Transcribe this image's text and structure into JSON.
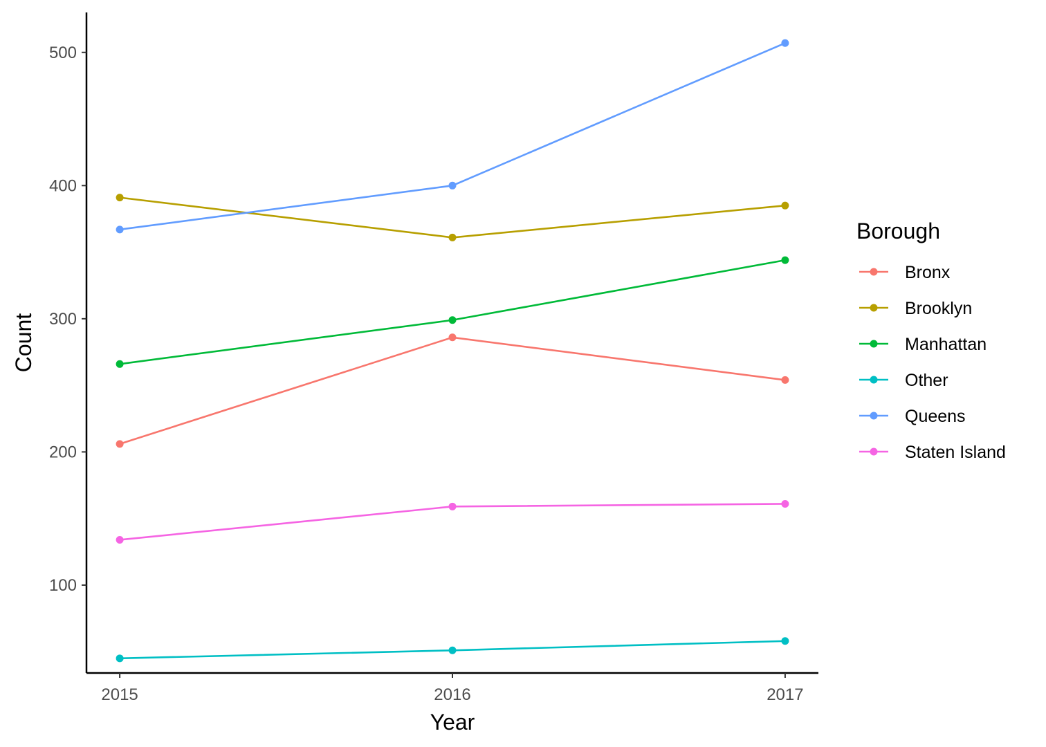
{
  "chart_data": {
    "type": "line",
    "title": "",
    "xlabel": "Year",
    "ylabel": "Count",
    "x": [
      2015,
      2016,
      2017
    ],
    "x_tick_labels": [
      "2015",
      "2016",
      "2017"
    ],
    "y_ticks": [
      100,
      200,
      300,
      400,
      500
    ],
    "y_tick_labels": [
      "100",
      "200",
      "300",
      "400",
      "500"
    ],
    "ylim": [
      34,
      530
    ],
    "grid": false,
    "legend": {
      "title": "Borough",
      "position": "right"
    },
    "series": [
      {
        "name": "Bronx",
        "color": "#F8766D",
        "values": [
          206,
          286,
          254
        ]
      },
      {
        "name": "Brooklyn",
        "color": "#B79F00",
        "values": [
          391,
          361,
          385
        ]
      },
      {
        "name": "Manhattan",
        "color": "#00BA38",
        "values": [
          266,
          299,
          344
        ]
      },
      {
        "name": "Other",
        "color": "#00BFC4",
        "values": [
          45,
          51,
          58
        ]
      },
      {
        "name": "Queens",
        "color": "#619CFF",
        "values": [
          367,
          400,
          507
        ]
      },
      {
        "name": "Staten Island",
        "color": "#F564E3",
        "values": [
          134,
          159,
          161
        ]
      }
    ]
  }
}
